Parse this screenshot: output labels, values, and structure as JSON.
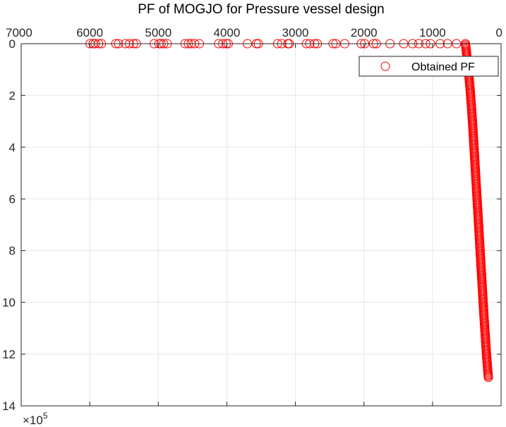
{
  "chart_data": {
    "type": "scatter",
    "title": "PF of MOGJO for Pressure vessel design",
    "x_axis": {
      "location": "top",
      "direction": "reversed",
      "range": [
        0,
        7000
      ],
      "ticks": [
        0,
        1000,
        2000,
        3000,
        4000,
        5000,
        6000,
        7000
      ],
      "tick_labels": [
        "0",
        "1000",
        "2000",
        "3000",
        "4000",
        "5000",
        "6000",
        "7000"
      ]
    },
    "y_axis": {
      "direction": "reversed",
      "range": [
        0,
        1400000
      ],
      "ticks": [
        0,
        200000,
        400000,
        600000,
        800000,
        1000000,
        1200000,
        1400000
      ],
      "tick_labels": [
        "0",
        "2",
        "4",
        "6",
        "8",
        "10",
        "12",
        "14"
      ],
      "exponent_prefix": "×10",
      "exponent_power": "5"
    },
    "grid": true,
    "legend": {
      "position": "top-right",
      "entries": [
        "Obtained PF"
      ]
    },
    "colors": {
      "marker": "#ff0000",
      "grid": "#e6e6e6",
      "axis": "#262626"
    },
    "marker": "open-circle",
    "series": [
      {
        "name": "Obtained PF",
        "scatter_top_x": [
          5995,
          5950,
          5920,
          5870,
          5830,
          5620,
          5580,
          5480,
          5420,
          5360,
          5320,
          5060,
          4990,
          4960,
          4920,
          4870,
          4610,
          4560,
          4520,
          4470,
          4400,
          4120,
          4060,
          4010,
          3980,
          3700,
          3570,
          3540,
          3260,
          3200,
          3110,
          3090,
          2840,
          2790,
          2720,
          2680,
          2450,
          2410,
          2280,
          2040,
          1990,
          1860,
          1820,
          1620,
          1420,
          1290,
          1200,
          1100,
          1030,
          890,
          780,
          650
        ],
        "scatter_top_y": 0,
        "curve_points": [
          [
            520,
            0
          ],
          [
            510,
            20000
          ],
          [
            500,
            45000
          ],
          [
            490,
            75000
          ],
          [
            470,
            120000
          ],
          [
            450,
            180000
          ],
          [
            430,
            250000
          ],
          [
            410,
            330000
          ],
          [
            390,
            420000
          ],
          [
            370,
            510000
          ],
          [
            350,
            600000
          ],
          [
            330,
            690000
          ],
          [
            310,
            780000
          ],
          [
            290,
            870000
          ],
          [
            270,
            960000
          ],
          [
            250,
            1050000
          ],
          [
            230,
            1130000
          ],
          [
            210,
            1210000
          ],
          [
            195,
            1260000
          ],
          [
            185,
            1290000
          ]
        ],
        "curve_count": 280
      }
    ]
  }
}
